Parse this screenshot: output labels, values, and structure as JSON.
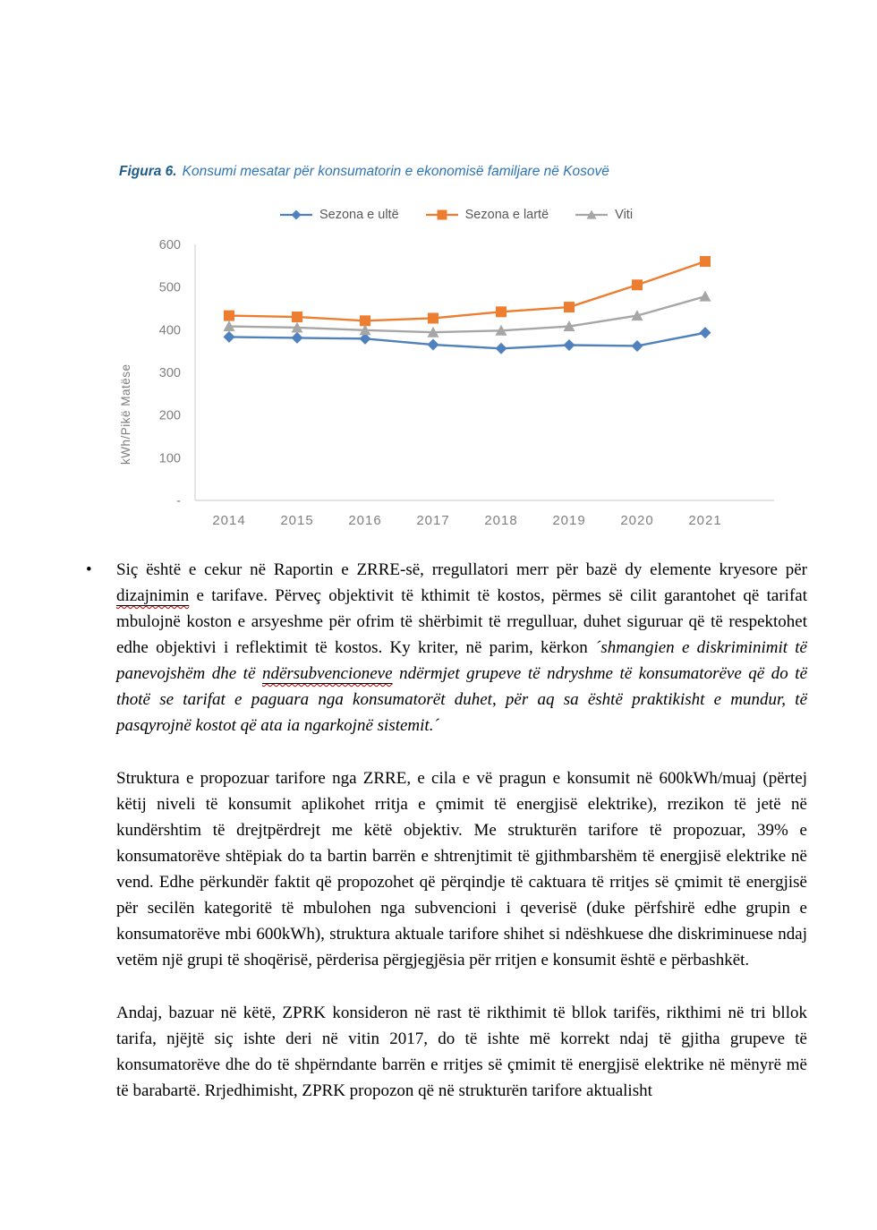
{
  "figure": {
    "label": "Figura 6.",
    "caption": "Konsumi mesatar për konsumatorin e ekonomisë familjare në Kosovë"
  },
  "chart_data": {
    "type": "line",
    "title": "Konsumi mesatar për konsumatorin e ekonomisë familjare në Kosovë",
    "categories": [
      "2014",
      "2015",
      "2016",
      "2017",
      "2018",
      "2019",
      "2020",
      "2021"
    ],
    "series": [
      {
        "name": "Sezona e ultë",
        "marker": "diamond",
        "color": "#4E81BD",
        "values": [
          383,
          381,
          379,
          365,
          356,
          364,
          362,
          393
        ]
      },
      {
        "name": "Sezona e lartë",
        "marker": "square",
        "color": "#ED7D31",
        "values": [
          433,
          430,
          421,
          427,
          442,
          453,
          505,
          560
        ]
      },
      {
        "name": "Viti",
        "marker": "triangle",
        "color": "#A6A6A6",
        "values": [
          408,
          405,
          399,
          394,
          398,
          408,
          433,
          478
        ]
      }
    ],
    "xlabel": "",
    "ylabel": "kWh/Pikë Matëse",
    "ylim": [
      0,
      600
    ],
    "ytick_step": 100,
    "zero_tick_label": "-",
    "grid": false,
    "legend_position": "top",
    "axis_color": "#D9D9D9",
    "tick_text_color": "#7F7F7F"
  },
  "paragraphs": {
    "bullet_glyph": "•",
    "p1": {
      "seg1": "Siç është e cekur në Raportin e ZRRE-së, rregullatori merr për bazë dy elemente kryesore për ",
      "misspelled1": "dizajnimin",
      "seg2": " e tarifave. Përveç objektivit të kthimit të kostos, përmes së cilit garantohet që tarifat mbulojnë koston e arsyeshme për ofrim të shërbimit të rregulluar, duhet siguruar që të respektohet edhe objektivi i reflektimit të kostos. Ky kriter, në parim, kërkon ",
      "quote_start": "´shmangien e diskriminimit të panevojshëm dhe të ",
      "misspelled2": "ndërsubvencioneve",
      "quote_end": " ndërmjet grupeve të ndryshme të konsumatorëve që do të thotë se tarifat e paguara nga konsumatorët duhet, për aq sa është praktikisht e mundur, të pasqyrojnë kostot që ata ia ngarkojnë sistemit.´"
    },
    "p2": "Struktura e propozuar tarifore nga ZRRE, e cila e vë pragun e konsumit në 600kWh/muaj (përtej këtij niveli të konsumit aplikohet rritja e çmimit të energjisë elektrike), rrezikon të jetë në kundërshtim të drejtpërdrejt me këtë objektiv. Me strukturën tarifore të propozuar, 39% e konsumatorëve shtëpiak do ta bartin barrën e shtrenjtimit të gjithmbarshëm të energjisë elektrike në vend. Edhe përkundër faktit që propozohet që përqindje të caktuara të rritjes së çmimit të energjisë për secilën kategoritë të mbulohen nga subvencioni i qeverisë (duke përfshirë edhe grupin e konsumatorëve mbi 600kWh), struktura aktuale tarifore shihet si ndëshkuese dhe diskriminuese ndaj vetëm një grupi të shoqërisë, përderisa përgjegjësia për rritjen e konsumit është e përbashkët.",
    "p3": "Andaj, bazuar në këtë, ZPRK konsideron në rast të rikthimit të bllok tarifës, rikthimi në tri bllok tarifa, njëjtë siç ishte deri në vitin 2017, do të ishte më korrekt ndaj të gjitha grupeve të konsumatorëve dhe do të shpërndante barrën e rritjes së çmimit të energjisë elektrike në mënyrë më të barabartë. Rrjedhimisht, ZPRK propozon që në strukturën tarifore aktualisht"
  }
}
